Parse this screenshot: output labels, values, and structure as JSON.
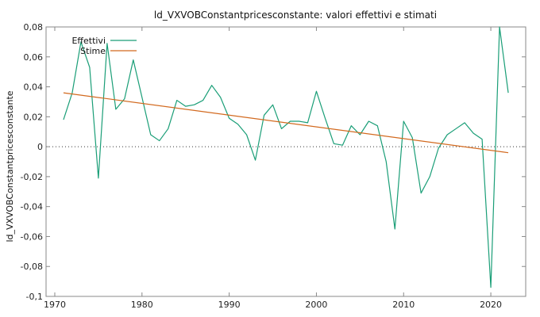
{
  "chart_data": {
    "type": "line",
    "title": "ld_VXVOBConstantpricesconstante: valori effettivi e stimati",
    "xlabel": "",
    "ylabel": "ld_VXVOBConstantpricesconstante",
    "xlim": [
      1969,
      2024
    ],
    "ylim": [
      -0.1,
      0.08
    ],
    "x_ticks": [
      1970,
      1980,
      1990,
      2000,
      2010,
      2020
    ],
    "x_tick_labels": [
      "1970",
      "1980",
      "1990",
      "2000",
      "2010",
      "2020"
    ],
    "y_ticks": [
      -0.1,
      -0.08,
      -0.06,
      -0.04,
      -0.02,
      0,
      0.02,
      0.04,
      0.06,
      0.08
    ],
    "y_tick_labels": [
      "-0,1",
      "-0,08",
      "-0,06",
      "-0,04",
      "-0,02",
      "0",
      "0,02",
      "0,04",
      "0,06",
      "0,08"
    ],
    "zero_line": true,
    "grid": false,
    "legend_position": "top-left",
    "series": [
      {
        "name": "Effettivi",
        "color": "#1a9e77",
        "x": [
          1971,
          1972,
          1973,
          1974,
          1975,
          1976,
          1977,
          1978,
          1979,
          1980,
          1981,
          1982,
          1983,
          1984,
          1985,
          1986,
          1987,
          1988,
          1989,
          1990,
          1991,
          1992,
          1993,
          1994,
          1995,
          1996,
          1997,
          1998,
          1999,
          2000,
          2001,
          2002,
          2003,
          2004,
          2005,
          2006,
          2007,
          2008,
          2009,
          2010,
          2011,
          2012,
          2013,
          2014,
          2015,
          2016,
          2017,
          2018,
          2019,
          2020,
          2021,
          2022
        ],
        "y": [
          0.018,
          0.036,
          0.07,
          0.053,
          -0.021,
          0.069,
          0.025,
          0.032,
          0.058,
          0.033,
          0.008,
          0.004,
          0.012,
          0.031,
          0.027,
          0.028,
          0.031,
          0.041,
          0.033,
          0.019,
          0.015,
          0.008,
          -0.009,
          0.021,
          0.028,
          0.012,
          0.017,
          0.017,
          0.016,
          0.037,
          0.019,
          0.002,
          0.001,
          0.014,
          0.008,
          0.017,
          0.014,
          -0.01,
          -0.055,
          0.017,
          0.006,
          -0.031,
          -0.02,
          -0.001,
          0.008,
          0.012,
          0.016,
          0.009,
          0.005,
          -0.094,
          0.08,
          0.036
        ]
      },
      {
        "name": "Stime",
        "color": "#d2691e",
        "x": [
          1971,
          2022
        ],
        "y": [
          0.036,
          -0.004
        ]
      }
    ]
  }
}
